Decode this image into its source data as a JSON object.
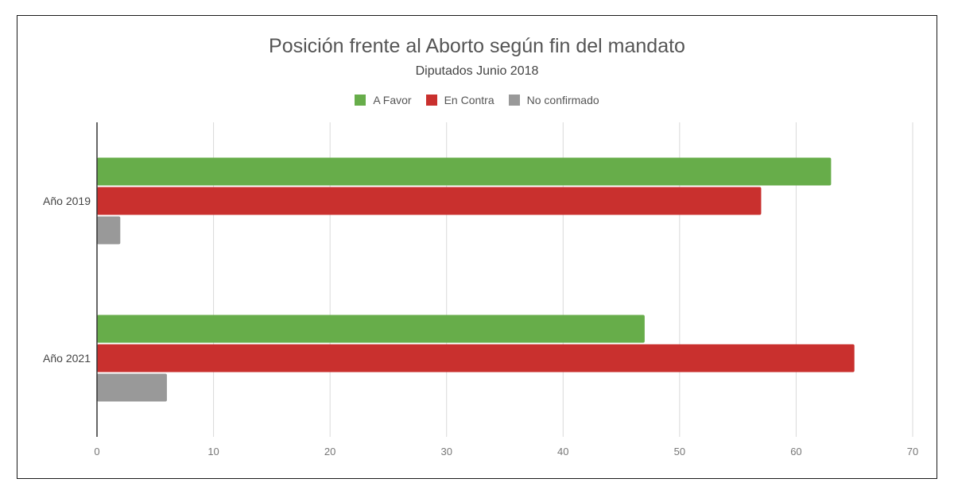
{
  "chart_data": {
    "type": "bar",
    "orientation": "horizontal",
    "title": "Posición frente al Aborto según fin del mandato",
    "subtitle": "Diputados  Junio 2018",
    "categories": [
      "Año 2019",
      "Año 2021"
    ],
    "series": [
      {
        "name": "A Favor",
        "color": "#67ad4a",
        "values": [
          63,
          47
        ]
      },
      {
        "name": "En Contra",
        "color": "#c9302e",
        "values": [
          57,
          65
        ]
      },
      {
        "name": "No confirmado",
        "color": "#999999",
        "values": [
          2,
          6
        ]
      }
    ],
    "xlim": [
      0,
      70
    ],
    "xticks": [
      "0",
      "10",
      "20",
      "30",
      "40",
      "50",
      "60",
      "70"
    ],
    "grid": true,
    "legend_position": "top"
  }
}
